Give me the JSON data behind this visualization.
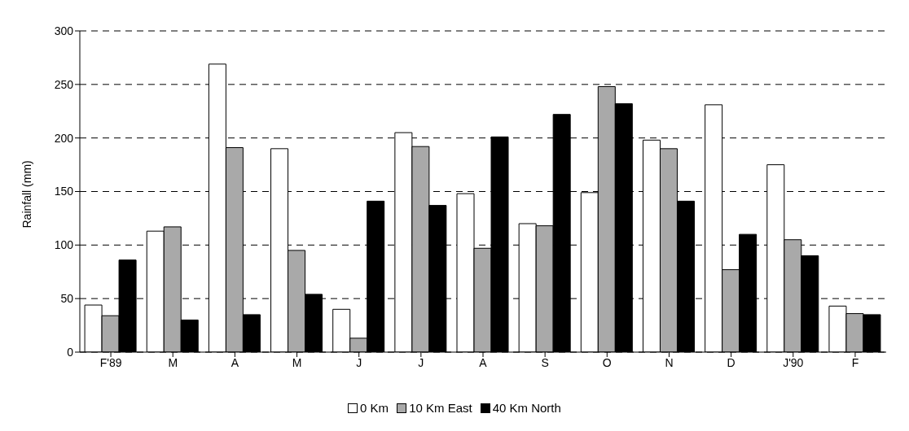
{
  "chart_data": {
    "type": "bar",
    "ylabel": "Rainfall (mm)",
    "categories": [
      "F'89",
      "M",
      "A",
      "M",
      "J",
      "J",
      "A",
      "S",
      "O",
      "N",
      "D",
      "J'90",
      "F"
    ],
    "series": [
      {
        "name": "0 Km",
        "color": "#ffffff",
        "values": [
          44,
          113,
          269,
          190,
          40,
          205,
          148,
          120,
          149,
          198,
          231,
          175,
          43
        ]
      },
      {
        "name": "10 Km East",
        "color": "#a9a9a9",
        "values": [
          34,
          117,
          191,
          95,
          13,
          192,
          97,
          118,
          248,
          190,
          77,
          105,
          36
        ]
      },
      {
        "name": "40 Km North",
        "color": "#000000",
        "values": [
          86,
          30,
          35,
          54,
          141,
          137,
          201,
          222,
          232,
          141,
          110,
          90,
          35
        ]
      }
    ],
    "ylim": [
      0,
      300
    ],
    "yticks": [
      0,
      50,
      100,
      150,
      200,
      250,
      300
    ],
    "grid": "y",
    "legend": "bottom"
  }
}
